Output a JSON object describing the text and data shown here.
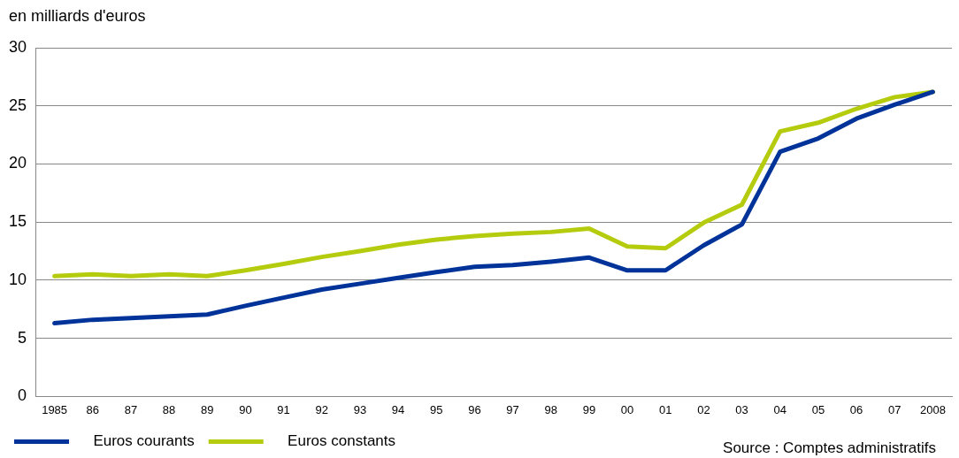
{
  "chart_data": {
    "type": "line",
    "ylabel": "en milliards d'euros",
    "categories": [
      "1985",
      "86",
      "87",
      "88",
      "89",
      "90",
      "91",
      "92",
      "93",
      "94",
      "95",
      "96",
      "97",
      "98",
      "99",
      "00",
      "01",
      "02",
      "03",
      "04",
      "05",
      "06",
      "07",
      "2008"
    ],
    "series": [
      {
        "name": "Euros courants",
        "color": "#003399",
        "values": [
          6.3,
          6.6,
          6.75,
          6.9,
          7.05,
          7.8,
          8.5,
          9.2,
          9.7,
          10.2,
          10.7,
          11.15,
          11.3,
          11.6,
          11.95,
          10.85,
          10.85,
          13.0,
          14.8,
          21.05,
          22.2,
          23.9,
          25.1,
          26.2
        ]
      },
      {
        "name": "Euros constants",
        "color": "#b5cc0e",
        "values": [
          10.35,
          10.5,
          10.35,
          10.5,
          10.35,
          10.85,
          11.4,
          12.0,
          12.5,
          13.05,
          13.5,
          13.8,
          14.0,
          14.15,
          14.45,
          12.9,
          12.75,
          14.95,
          16.5,
          22.8,
          23.55,
          24.75,
          25.75,
          26.2
        ]
      }
    ],
    "ylim": [
      0,
      30
    ],
    "yticks": [
      0,
      5,
      10,
      15,
      20,
      25,
      30
    ],
    "grid": "y",
    "legend": "bottom",
    "marker": "none",
    "line_style": "solid",
    "annotations": [
      "Source : Comptes administratifs"
    ]
  }
}
